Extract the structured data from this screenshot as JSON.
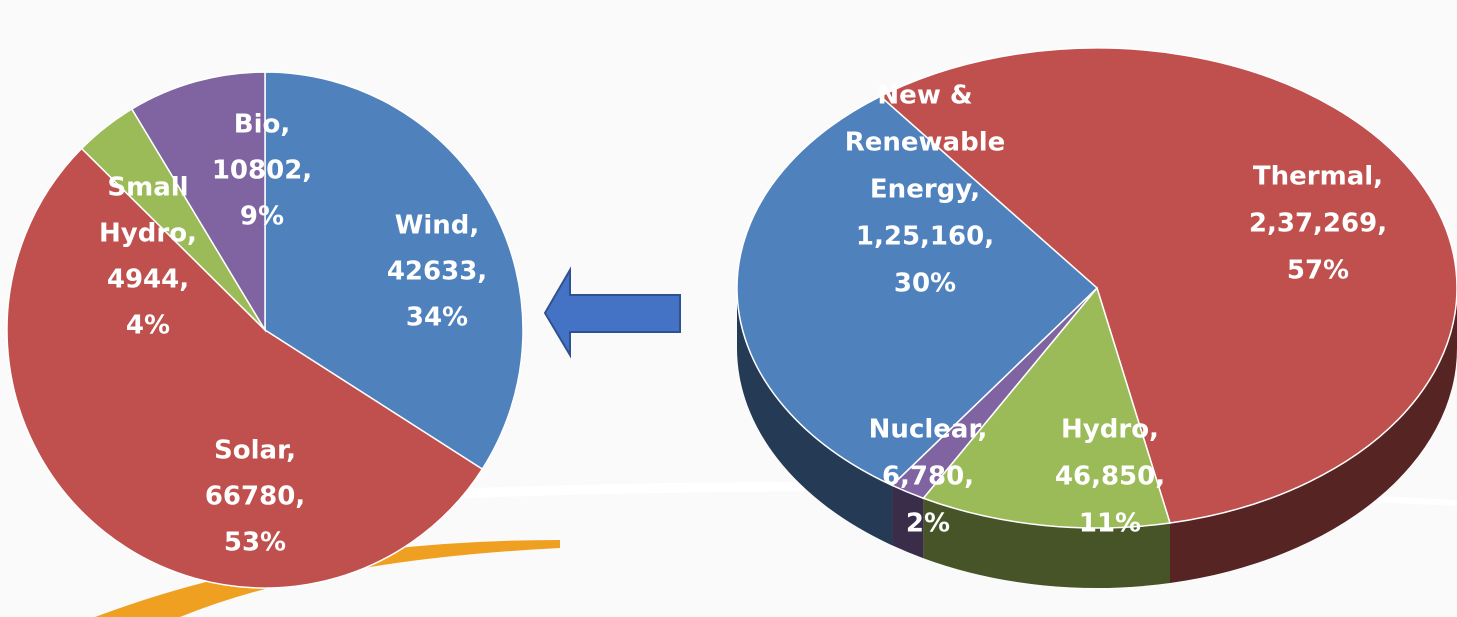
{
  "chart_data": [
    {
      "type": "pie",
      "values": [
        42633,
        66780,
        4944,
        10802
      ],
      "colors": [
        "#4f81bd",
        "#c0504d",
        "#9bbb59",
        "#8064a2"
      ],
      "labels": [
        [
          "Wind,",
          "42633,",
          "34%"
        ],
        [
          "Solar,",
          "66780,",
          "53%"
        ],
        [
          "Small",
          "Hydro,",
          "4944,",
          "4%"
        ],
        [
          "Bio,",
          "10802,",
          "9%"
        ]
      ]
    },
    {
      "type": "pie",
      "three_d": true,
      "values": [
        237269,
        46850,
        6780,
        125160
      ],
      "colors": [
        "#c0504d",
        "#9bbb59",
        "#8064a2",
        "#4f81bd"
      ],
      "labels": [
        [
          "Thermal,",
          "2,37,269,",
          "57%"
        ],
        [
          "Hydro,",
          "46,850,",
          "11%"
        ],
        [
          "Nuclear,",
          "6,780,",
          "2%"
        ],
        [
          "New &",
          "Renewable",
          "Energy,",
          "1,25,160,",
          "30%"
        ]
      ]
    }
  ]
}
